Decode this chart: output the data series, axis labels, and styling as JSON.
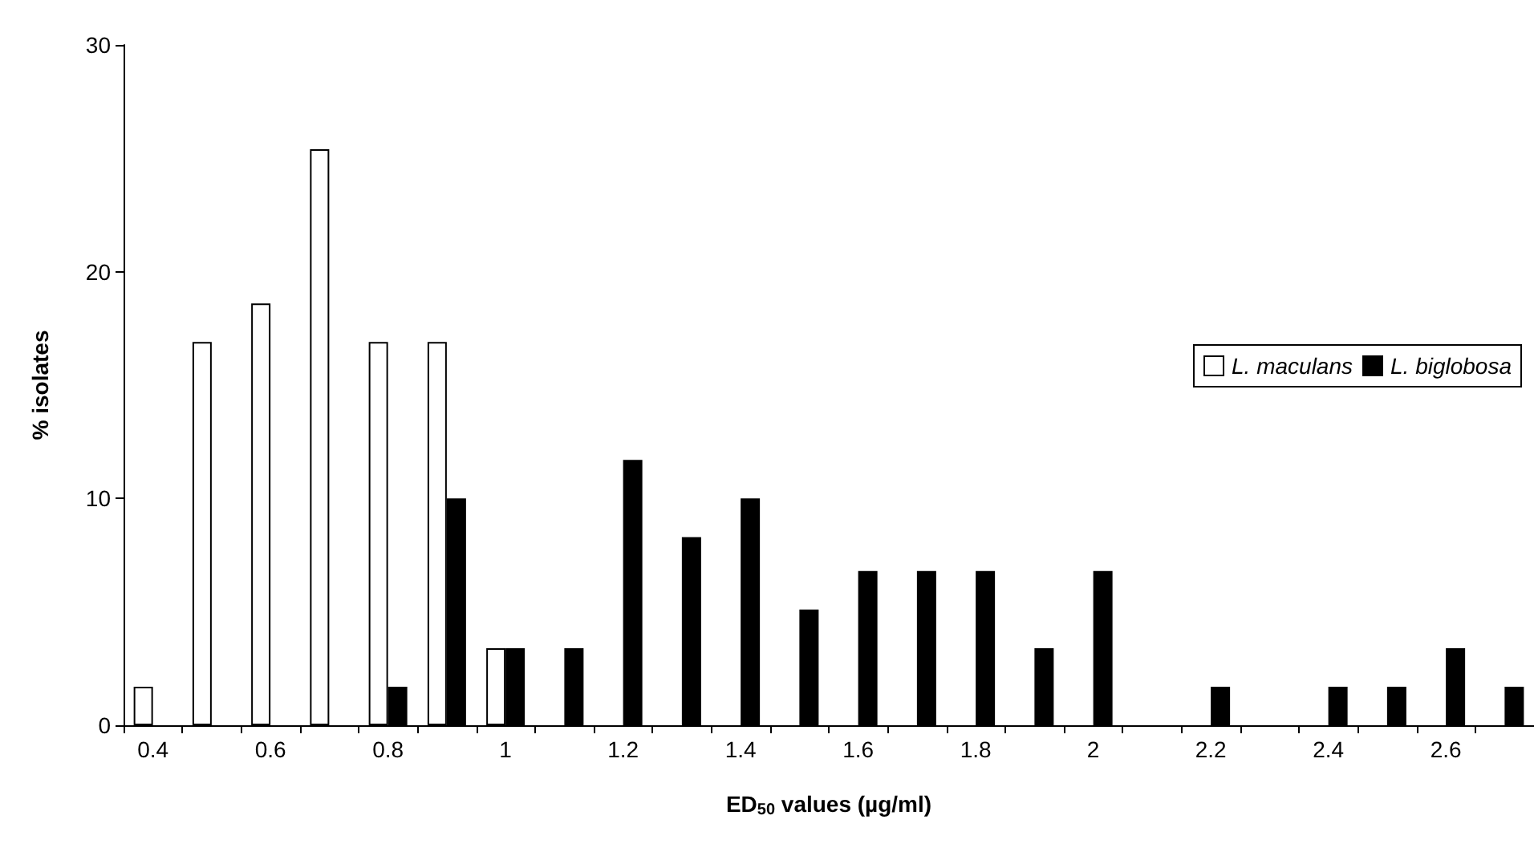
{
  "chart_data": {
    "type": "bar",
    "xlabel": "ED$_{50}$ values (µg/ml)",
    "ylabel": "% isolates",
    "categories": [
      "0.4",
      null,
      "0.6",
      null,
      "0.8",
      null,
      "1",
      null,
      "1.2",
      null,
      "1.4",
      null,
      "1.6",
      null,
      "1.8",
      null,
      "2",
      null,
      "2.2",
      null,
      "2.4",
      null,
      "2.6",
      null
    ],
    "series": [
      {
        "name": "L. maculans",
        "color": "#ffffff",
        "values": [
          1.7,
          16.9,
          18.6,
          25.4,
          16.9,
          16.9,
          3.4,
          0,
          0,
          0,
          0,
          0,
          0,
          0,
          0,
          0,
          0,
          0,
          0,
          0,
          0,
          0,
          0,
          0
        ]
      },
      {
        "name": "L. biglobosa",
        "color": "#000000",
        "values": [
          0,
          0,
          0,
          0,
          1.7,
          10,
          3.4,
          3.4,
          11.7,
          8.3,
          10,
          5.1,
          6.8,
          6.8,
          6.8,
          3.4,
          6.8,
          0,
          1.7,
          0,
          1.7,
          1.7,
          3.4,
          1.7
        ]
      }
    ],
    "ylim": [
      0,
      30
    ],
    "yticks": [
      0,
      10,
      20,
      30
    ],
    "grid": false,
    "legend": "right"
  }
}
